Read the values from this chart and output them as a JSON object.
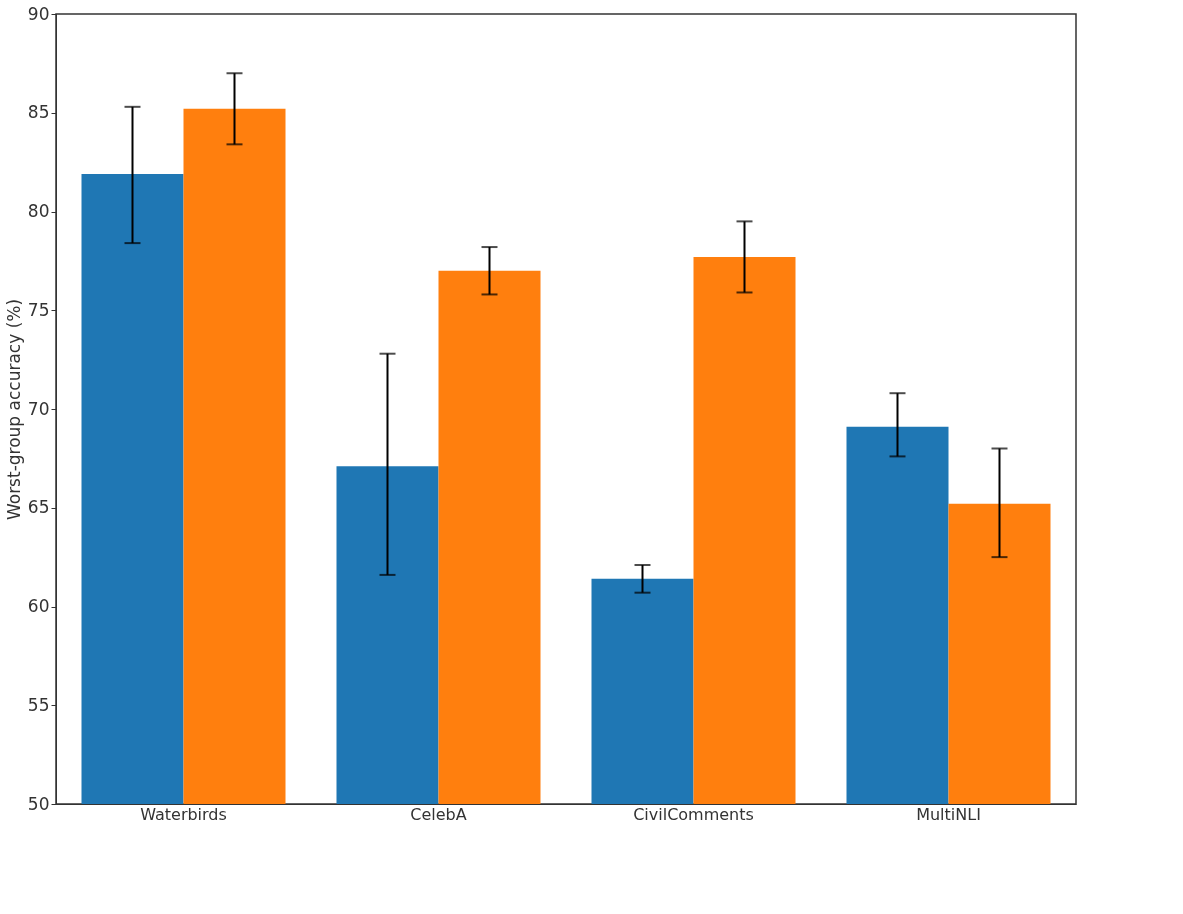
{
  "chart_data": {
    "type": "bar",
    "ylabel": "Worst-group accuracy (%)",
    "categories": [
      "Waterbirds",
      "CelebA",
      "CivilComments",
      "MultiNLI"
    ],
    "series": [
      {
        "color": "#1f77b4",
        "values": [
          81.9,
          67.1,
          61.4,
          69.1
        ],
        "errors": [
          [
            78.4,
            85.3
          ],
          [
            61.6,
            72.8
          ],
          [
            60.7,
            62.1
          ],
          [
            67.6,
            70.8
          ]
        ]
      },
      {
        "color": "#ff7f0e",
        "values": [
          85.2,
          77.0,
          77.7,
          65.2
        ],
        "errors": [
          [
            83.4,
            87.0
          ],
          [
            75.8,
            78.2
          ],
          [
            75.9,
            79.5
          ],
          [
            62.5,
            68.0
          ]
        ]
      }
    ],
    "ylim": [
      50,
      90
    ],
    "yticks": [
      50,
      55,
      60,
      65,
      70,
      75,
      80,
      85,
      90
    ],
    "grid": false,
    "legend": false
  }
}
